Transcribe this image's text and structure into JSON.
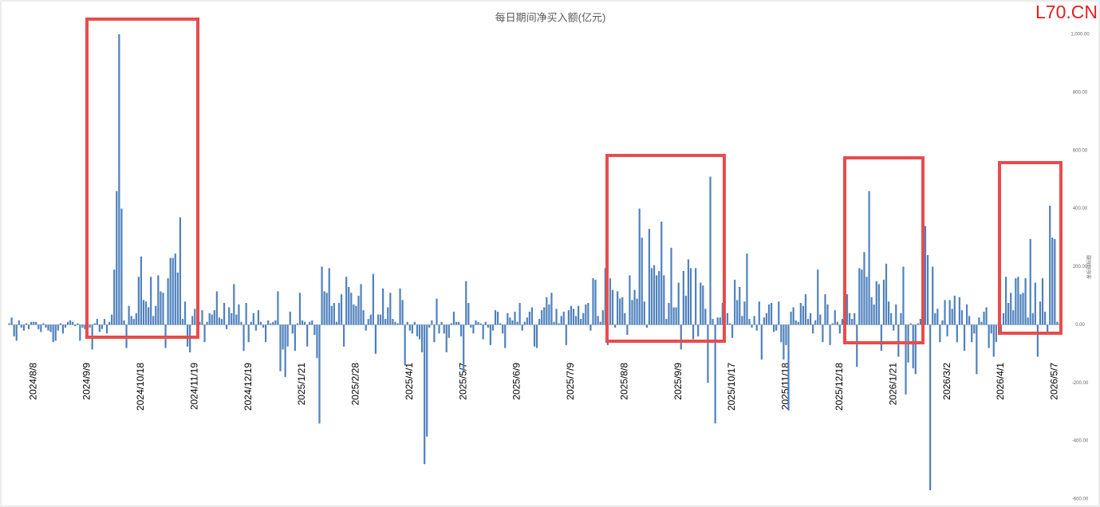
{
  "chart_data": {
    "type": "bar",
    "title": "每日期间净买入额(亿元)",
    "watermark": "L70.CN",
    "y_label": "坐标轴标题",
    "color": "#4f81bd",
    "ylim": [
      -600,
      1000
    ],
    "yticks": [
      {
        "value": -600,
        "label": "-600.00"
      },
      {
        "value": -400,
        "label": "-400.00"
      },
      {
        "value": -200,
        "label": "-200.00"
      },
      {
        "value": 0,
        "label": "0.00"
      },
      {
        "value": 200,
        "label": "200.00"
      },
      {
        "value": 400,
        "label": "400.00"
      },
      {
        "value": 600,
        "label": "600.00"
      },
      {
        "value": 800,
        "label": "800.00"
      },
      {
        "value": 1000,
        "label": "1,000.00"
      }
    ],
    "categories": [
      null,
      null,
      null,
      null,
      null,
      null,
      null,
      null,
      null,
      null,
      "2024/8/8",
      null,
      null,
      null,
      null,
      null,
      null,
      null,
      null,
      null,
      null,
      null,
      null,
      null,
      null,
      null,
      null,
      null,
      null,
      null,
      null,
      null,
      "2024/9/9",
      null,
      null,
      null,
      null,
      null,
      null,
      null,
      null,
      null,
      null,
      null,
      null,
      null,
      null,
      null,
      null,
      null,
      null,
      null,
      null,
      null,
      "2024/10/18",
      null,
      null,
      null,
      null,
      null,
      null,
      null,
      null,
      null,
      null,
      null,
      null,
      null,
      null,
      null,
      null,
      null,
      null,
      null,
      null,
      null,
      "2024/11/19",
      null,
      null,
      null,
      null,
      null,
      null,
      null,
      null,
      null,
      null,
      null,
      null,
      null,
      null,
      null,
      null,
      null,
      null,
      null,
      null,
      null,
      "2024/12/19",
      null,
      null,
      null,
      null,
      null,
      null,
      null,
      null,
      null,
      null,
      null,
      null,
      null,
      null,
      null,
      null,
      null,
      null,
      null,
      null,
      null,
      "2025/1/21",
      null,
      null,
      null,
      null,
      null,
      null,
      null,
      null,
      null,
      null,
      null,
      null,
      null,
      null,
      null,
      null,
      null,
      null,
      null,
      null,
      null,
      "2025/2/28",
      null,
      null,
      null,
      null,
      null,
      null,
      null,
      null,
      null,
      null,
      null,
      null,
      null,
      null,
      null,
      null,
      null,
      null,
      null,
      null,
      null,
      "2025/4/1",
      null,
      null,
      null,
      null,
      null,
      null,
      null,
      null,
      null,
      null,
      null,
      null,
      null,
      null,
      null,
      null,
      null,
      null,
      null,
      null,
      null,
      "2025/5/7",
      null,
      null,
      null,
      null,
      null,
      null,
      null,
      null,
      null,
      null,
      null,
      null,
      null,
      null,
      null,
      null,
      null,
      null,
      null,
      null,
      null,
      "2025/6/9",
      null,
      null,
      null,
      null,
      null,
      null,
      null,
      null,
      null,
      null,
      null,
      null,
      null,
      null,
      null,
      null,
      null,
      null,
      null,
      null,
      null,
      "2025/7/9",
      null,
      null,
      null,
      null,
      null,
      null,
      null,
      null,
      null,
      null,
      null,
      null,
      null,
      null,
      null,
      null,
      null,
      null,
      null,
      null,
      null,
      "2025/8/8",
      null,
      null,
      null,
      null,
      null,
      null,
      null,
      null,
      null,
      null,
      null,
      null,
      null,
      null,
      null,
      null,
      null,
      null,
      null,
      null,
      null,
      "2025/9/9",
      null,
      null,
      null,
      null,
      null,
      null,
      null,
      null,
      null,
      null,
      null,
      null,
      null,
      null,
      null,
      null,
      null,
      null,
      null,
      null,
      null,
      "2025/10/17",
      null,
      null,
      null,
      null,
      null,
      null,
      null,
      null,
      null,
      null,
      null,
      null,
      null,
      null,
      null,
      null,
      null,
      null,
      null,
      null,
      null,
      "2025/11/18",
      null,
      null,
      null,
      null,
      null,
      null,
      null,
      null,
      null,
      null,
      null,
      null,
      null,
      null,
      null,
      null,
      null,
      null,
      null,
      null,
      null,
      "2025/12/18",
      null,
      null,
      null,
      null,
      null,
      null,
      null,
      null,
      null,
      null,
      null,
      null,
      null,
      null,
      null,
      null,
      null,
      null,
      null,
      null,
      null,
      "2026/1/21",
      null,
      null,
      null,
      null,
      null,
      null,
      null,
      null,
      null,
      null,
      null,
      null,
      null,
      null,
      null,
      null,
      null,
      null,
      null,
      null,
      null,
      "2026/3/2",
      null,
      null,
      null,
      null,
      null,
      null,
      null,
      null,
      null,
      null,
      null,
      null,
      null,
      null,
      null,
      null,
      null,
      null,
      null,
      null,
      null,
      "2026/4/1",
      null,
      null,
      null,
      null,
      null,
      null,
      null,
      null,
      null,
      null,
      null,
      null,
      null,
      null,
      null,
      null,
      null,
      null,
      null,
      null,
      null,
      "2026/5/7",
      null,
      null
    ],
    "values": [
      5,
      25,
      -40,
      -55,
      15,
      -10,
      -20,
      5,
      -15,
      10,
      10,
      10,
      -15,
      -25,
      5,
      -10,
      -20,
      -25,
      -60,
      -55,
      -20,
      5,
      -30,
      -10,
      10,
      15,
      10,
      -5,
      5,
      -55,
      -10,
      -15,
      -15,
      -10,
      -85,
      5,
      20,
      -25,
      -15,
      20,
      -30,
      10,
      35,
      190,
      460,
      1000,
      400,
      15,
      -80,
      65,
      30,
      20,
      40,
      165,
      235,
      85,
      80,
      60,
      165,
      30,
      65,
      170,
      115,
      110,
      -80,
      160,
      230,
      230,
      245,
      180,
      370,
      20,
      80,
      -75,
      -95,
      30,
      55,
      -20,
      10,
      50,
      -60,
      10,
      40,
      35,
      50,
      115,
      25,
      20,
      75,
      -15,
      60,
      40,
      140,
      35,
      70,
      10,
      -90,
      75,
      -60,
      10,
      40,
      -20,
      50,
      10,
      -10,
      -60,
      15,
      5,
      10,
      15,
      115,
      -160,
      -85,
      -180,
      -75,
      45,
      -30,
      -90,
      5,
      110,
      15,
      10,
      -75,
      10,
      15,
      -35,
      -115,
      -340,
      200,
      115,
      110,
      195,
      65,
      75,
      10,
      75,
      105,
      -75,
      165,
      130,
      110,
      70,
      65,
      100,
      140,
      50,
      -20,
      20,
      35,
      175,
      -100,
      35,
      35,
      125,
      20,
      60,
      110,
      20,
      10,
      5,
      125,
      85,
      -140,
      10,
      -20,
      -30,
      10,
      -40,
      -50,
      -95,
      -480,
      -385,
      -10,
      15,
      -60,
      90,
      -30,
      10,
      -30,
      -95,
      -45,
      5,
      45,
      10,
      10,
      -40,
      -160,
      150,
      75,
      -10,
      -30,
      15,
      10,
      5,
      -50,
      10,
      -10,
      -70,
      -20,
      50,
      45,
      5,
      -30,
      -80,
      40,
      25,
      15,
      45,
      10,
      75,
      -20,
      10,
      25,
      45,
      60,
      -75,
      -80,
      20,
      50,
      60,
      95,
      70,
      110,
      10,
      55,
      5,
      30,
      45,
      -70,
      50,
      65,
      55,
      30,
      65,
      20,
      40,
      70,
      75,
      -20,
      160,
      155,
      30,
      10,
      50,
      195,
      -70,
      160,
      120,
      -10,
      115,
      90,
      95,
      40,
      -35,
      170,
      85,
      120,
      90,
      400,
      300,
      80,
      -10,
      330,
      195,
      205,
      170,
      185,
      355,
      170,
      20,
      75,
      265,
      60,
      60,
      145,
      -85,
      185,
      100,
      225,
      195,
      -50,
      195,
      -40,
      145,
      135,
      55,
      -200,
      510,
      20,
      -340,
      25,
      25,
      75,
      5,
      40,
      5,
      -45,
      155,
      85,
      130,
      30,
      80,
      245,
      20,
      -10,
      30,
      -20,
      80,
      -120,
      25,
      40,
      70,
      75,
      -25,
      -20,
      80,
      -60,
      -120,
      -70,
      -295,
      45,
      60,
      15,
      10,
      75,
      65,
      105,
      20,
      40,
      -30,
      15,
      190,
      35,
      -60,
      105,
      70,
      -70,
      5,
      50,
      10,
      -30,
      20,
      155,
      105,
      40,
      20,
      40,
      -145,
      195,
      190,
      250,
      165,
      460,
      95,
      70,
      150,
      140,
      -90,
      155,
      210,
      80,
      40,
      -20,
      70,
      -110,
      40,
      200,
      -240,
      -130,
      5,
      -150,
      -170,
      5,
      20,
      -50,
      340,
      240,
      -570,
      200,
      40,
      55,
      -60,
      15,
      85,
      -40,
      85,
      55,
      100,
      -60,
      95,
      50,
      -90,
      70,
      30,
      -60,
      -30,
      -170,
      25,
      10,
      45,
      60,
      -80,
      -30,
      -110,
      -60,
      5,
      -30,
      40,
      165,
      75,
      110,
      50,
      160,
      165,
      105,
      110,
      160,
      25,
      295,
      40,
      145,
      -110,
      80,
      160,
      45,
      -30,
      410,
      300,
      295,
      10,
      5
    ]
  }
}
